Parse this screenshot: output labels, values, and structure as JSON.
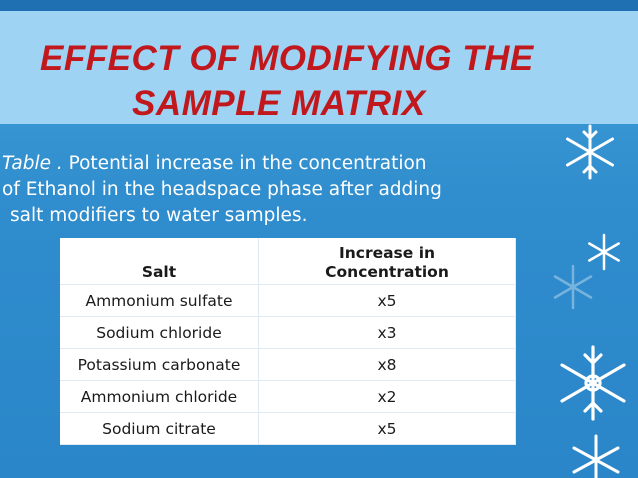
{
  "slide": {
    "title_line1": "EFFECT OF MODIFYING THE",
    "title_line2": "SAMPLE MATRIX",
    "caption": {
      "lead": "Table .",
      "line1_rest": " Potential increase in the concentration",
      "line2": "of Ethanol in the headspace phase after adding",
      "line3": "salt modifiers to water samples."
    }
  },
  "table": {
    "headers": [
      "Salt",
      "Increase in",
      "Concentration"
    ],
    "rows": [
      {
        "salt": "Ammonium sulfate",
        "increase": "x5"
      },
      {
        "salt": "Sodium chloride",
        "increase": "x3"
      },
      {
        "salt": "Potassium carbonate",
        "increase": "x8"
      },
      {
        "salt": "Ammonium chloride",
        "increase": "x2"
      },
      {
        "salt": "Sodium citrate",
        "increase": "x5"
      }
    ]
  },
  "theme": {
    "title_color": "#c0181c",
    "band_color": "#9fd3f4",
    "background_color": "#2f8ccd",
    "decorations": [
      "snowflake-icon"
    ]
  }
}
